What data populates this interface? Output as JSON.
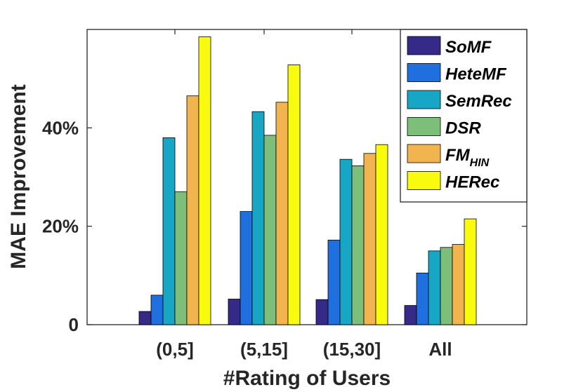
{
  "chart_data": {
    "type": "bar",
    "title": "",
    "xlabel": "#Rating of Users",
    "ylabel": "MAE Improvement",
    "categories": [
      "(0,5]",
      "(5,15]",
      "(15,30]",
      "All"
    ],
    "ylim": [
      0,
      60
    ],
    "yticks": [
      0,
      20,
      40
    ],
    "ytick_labels": [
      "0",
      "20%",
      "40%"
    ],
    "grid": false,
    "legend_position": "top-right",
    "series": [
      {
        "name": "SoMF",
        "name_base": "SoMF",
        "name_sub": "",
        "color": "#352a87",
        "values": [
          2.7,
          5.2,
          5.1,
          3.9
        ]
      },
      {
        "name": "HeteMF",
        "name_base": "HeteMF",
        "name_sub": "",
        "color": "#1f6fde",
        "values": [
          6.0,
          23.0,
          17.2,
          10.5
        ]
      },
      {
        "name": "SemRec",
        "name_base": "SemRec",
        "name_sub": "",
        "color": "#17a6c4",
        "values": [
          38.0,
          43.3,
          33.6,
          15.0
        ]
      },
      {
        "name": "DSR",
        "name_base": "DSR",
        "name_sub": "",
        "color": "#7dbe7a",
        "values": [
          27.0,
          38.5,
          32.3,
          15.7
        ]
      },
      {
        "name": "FMHIN",
        "name_base": "FM",
        "name_sub": "HIN",
        "color": "#f2b44f",
        "values": [
          46.5,
          45.2,
          34.8,
          16.3
        ]
      },
      {
        "name": "HERec",
        "name_base": "HERec",
        "name_sub": "",
        "color": "#f9fb0e",
        "values": [
          58.5,
          52.8,
          36.6,
          21.5
        ]
      }
    ]
  }
}
